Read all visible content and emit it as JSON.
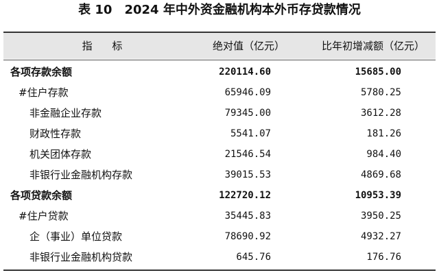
{
  "title": {
    "label": "表 10",
    "text": "2024 年中外资金融机构本外币存贷款情况"
  },
  "header": {
    "indicator": "指 标",
    "absolute": "绝对值（亿元）",
    "change": "比年初增减额（亿元）"
  },
  "rows": [
    {
      "name": "各项存款余额",
      "value": "220114.60",
      "change": "15685.00"
    },
    {
      "name": "#住户存款",
      "value": "65946.09",
      "change": "5780.25"
    },
    {
      "name": "非金融企业存款",
      "value": "79345.00",
      "change": "3612.28"
    },
    {
      "name": "财政性存款",
      "value": "5541.07",
      "change": "181.26"
    },
    {
      "name": "机关团体存款",
      "value": "21546.54",
      "change": "984.40"
    },
    {
      "name": "非银行业金融机构存款",
      "value": "39015.53",
      "change": "4869.68"
    },
    {
      "name": "各项贷款余额",
      "value": "122720.12",
      "change": "10953.39"
    },
    {
      "name": "#住户贷款",
      "value": "35445.83",
      "change": "3950.25"
    },
    {
      "name": "企（事业）单位贷款",
      "value": "78690.92",
      "change": "4932.27"
    },
    {
      "name": "非银行业金融机构贷款",
      "value": "645.76",
      "change": "176.76"
    }
  ]
}
